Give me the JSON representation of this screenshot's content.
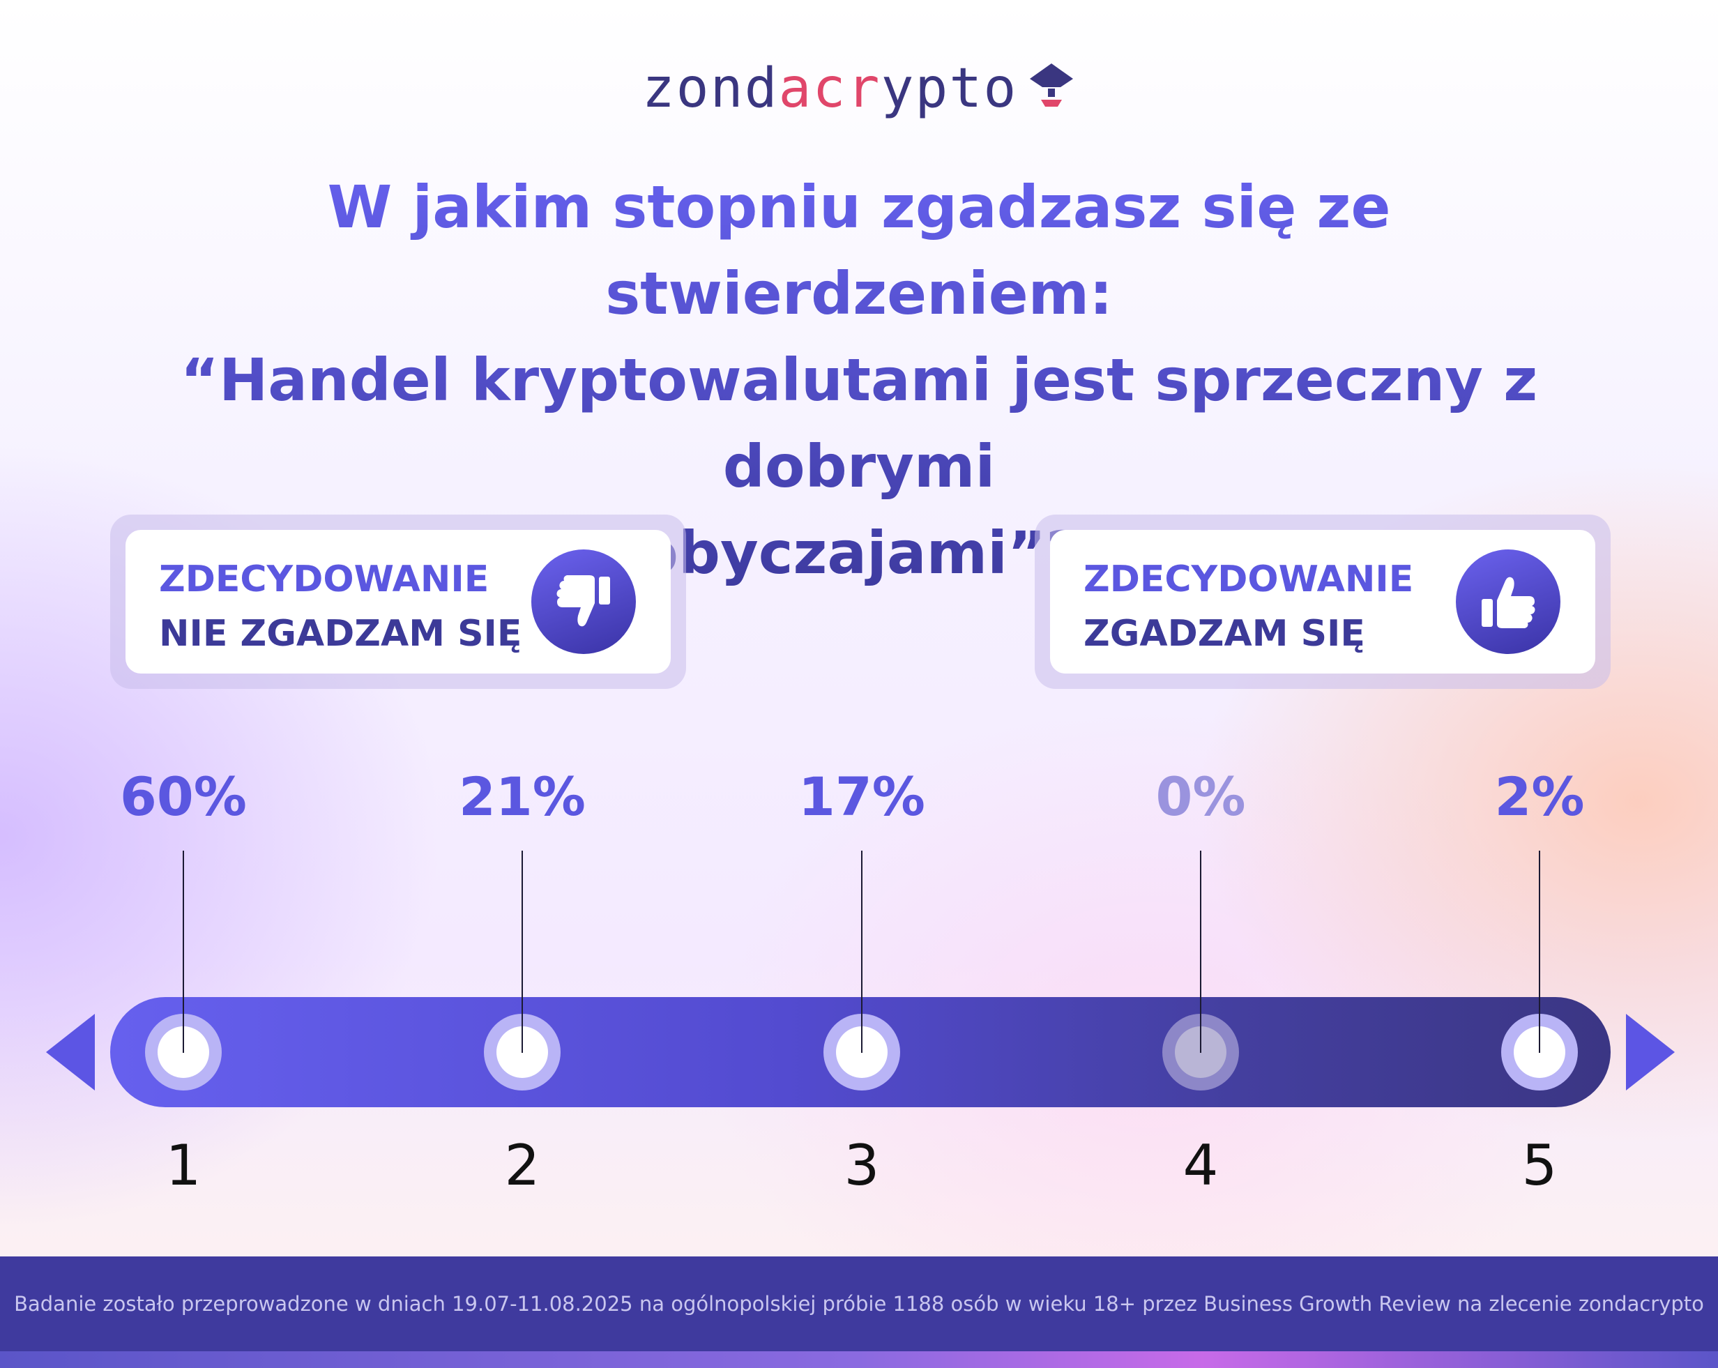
{
  "brand": {
    "logo_part1": "zond",
    "logo_part2": "acr",
    "logo_part3": "ypto",
    "accent_color": "#e0466a",
    "primary_color": "#3a3680"
  },
  "question": {
    "line1": "W jakim stopniu zgadzasz się ze stwierdzeniem:",
    "line2": "“Handel kryptowalutami jest sprzeczny z dobrymi",
    "line3": "obyczajami”?"
  },
  "legend": {
    "left": {
      "line1": "ZDECYDOWANIE",
      "line2": "NIE ZGADZAM SIĘ",
      "icon": "thumbs-down-icon"
    },
    "right": {
      "line1": "ZDECYDOWANIE",
      "line2": "ZGADZAM SIĘ",
      "icon": "thumbs-up-icon"
    }
  },
  "chart_data": {
    "type": "bar",
    "categories": [
      "1",
      "2",
      "3",
      "4",
      "5"
    ],
    "values": [
      60,
      21,
      17,
      0,
      2
    ],
    "labels": [
      "60%",
      "21%",
      "17%",
      "0%",
      "2%"
    ],
    "title": "W jakim stopniu zgadzasz się ze stwierdzeniem: “Handel kryptowalutami jest sprzeczny z dobrymi obyczajami”?",
    "xlabel": "",
    "ylabel": "",
    "scale_ends": [
      "ZDECYDOWANIE NIE ZGADZAM SIĘ",
      "ZDECYDOWANIE ZGADZAM SIĘ"
    ],
    "colors": {
      "label": "#5b57e0",
      "label_zero": "#9a93de",
      "track_start": "#6660ee",
      "track_end": "#3b3684"
    }
  },
  "footer": {
    "text": "Badanie zostało przeprowadzone w dniach 19.07-11.08.2025 na ogólnopolskiej próbie 1188 osób  w wieku 18+ przez Business Growth Review na zlecenie zondacrypto"
  }
}
